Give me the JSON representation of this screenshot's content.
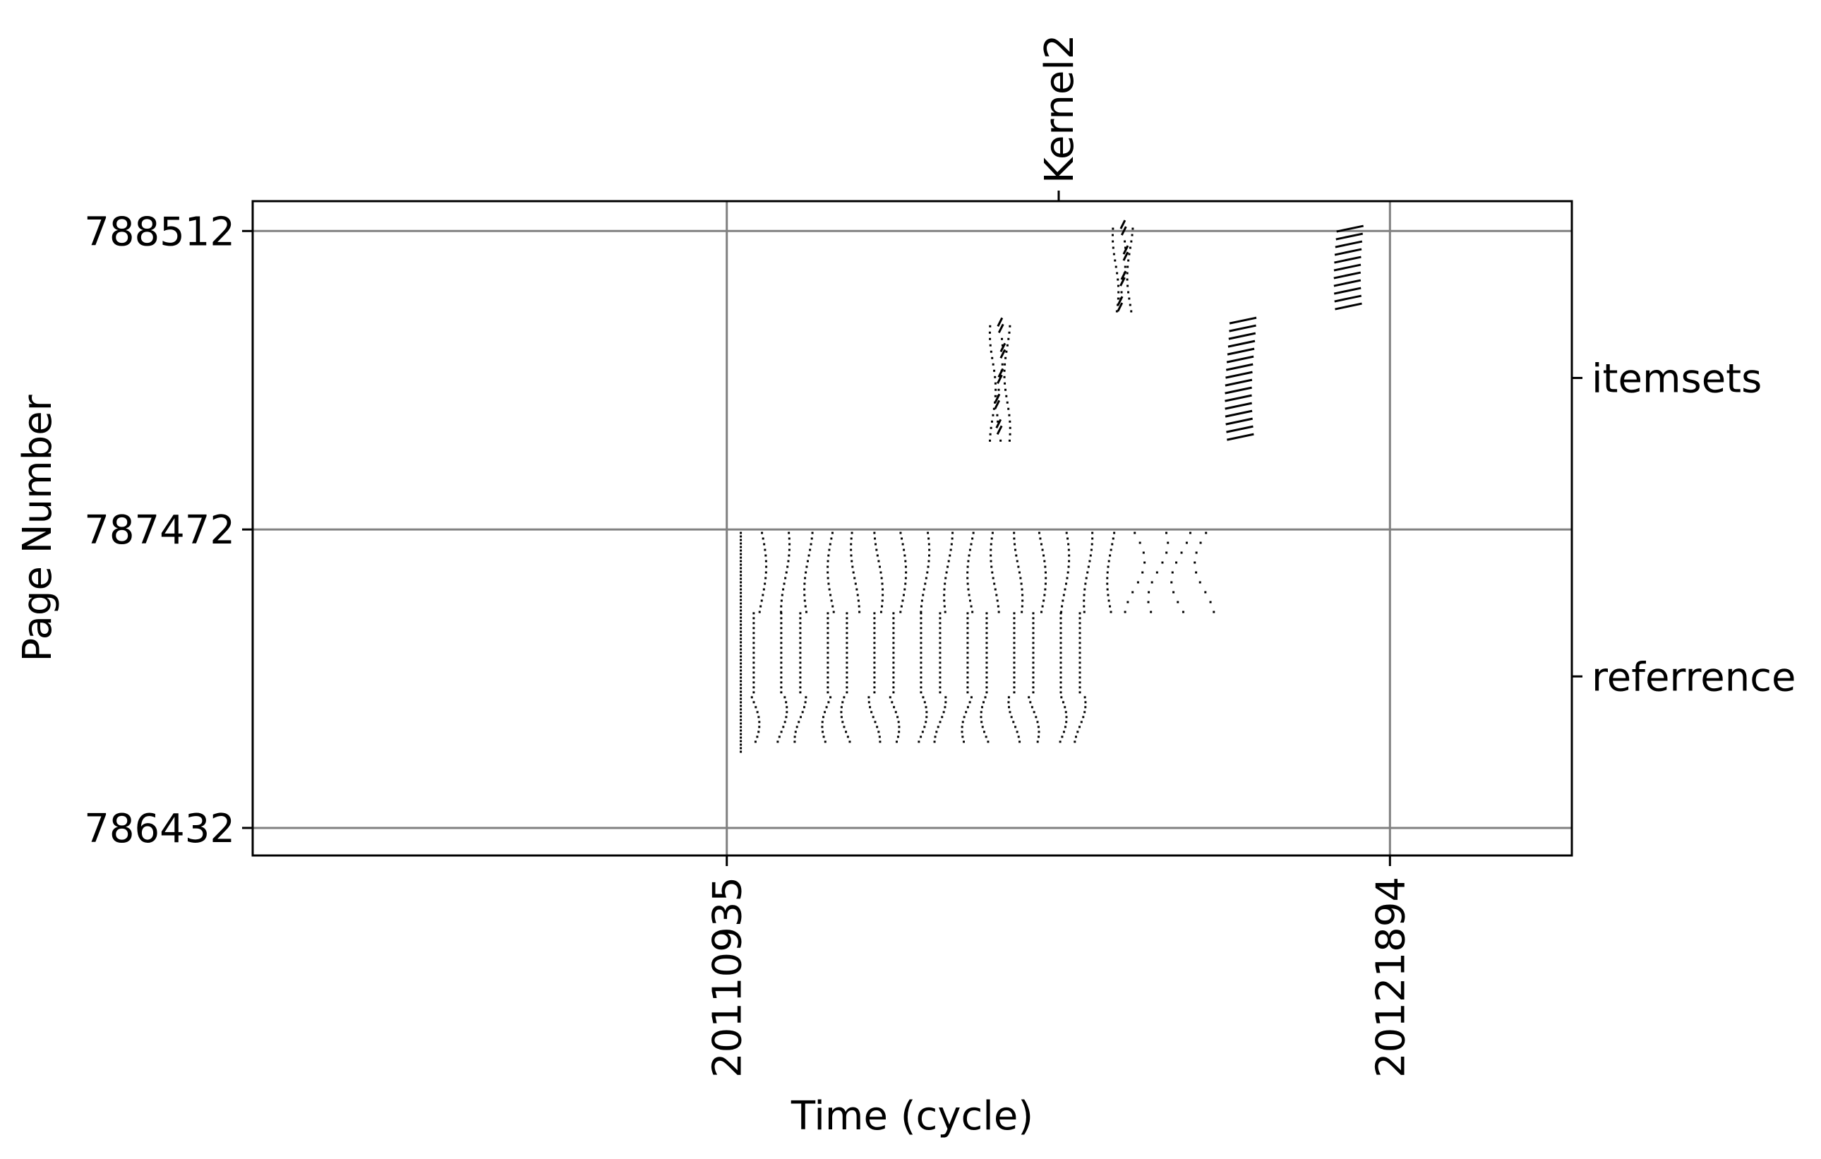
{
  "chart_data": {
    "type": "scatter",
    "title": "",
    "xlabel": "Time (cycle)",
    "ylabel": "Page Number",
    "xlim": [
      20103100,
      20124900
    ],
    "ylim": [
      786336,
      788616
    ],
    "x_ticks": [
      {
        "value": 20110935,
        "label": "20110935"
      },
      {
        "value": 20121894,
        "label": "20121894"
      }
    ],
    "y_ticks": [
      {
        "value": 786432,
        "label": "786432"
      },
      {
        "value": 787472,
        "label": "787472"
      },
      {
        "value": 788512,
        "label": "788512"
      }
    ],
    "right_ticks": [
      {
        "value": 788000,
        "label": "itemsets"
      },
      {
        "value": 786960,
        "label": "referrence"
      }
    ],
    "top_ticks": [
      {
        "value": 20116420,
        "label": "Kernel2"
      }
    ],
    "grid": true,
    "marker_color": "#000000",
    "grid_color": "#808080",
    "reference_columns": {
      "x_start": 20111050,
      "x_step": 385,
      "upper_count": 16,
      "upper_band": [
        787180,
        787460
      ],
      "lower_band": [
        786720,
        787180
      ],
      "shifted_start": 20111380
    },
    "itemset_clusters": [
      {
        "x": 20115450,
        "y_range": [
          787770,
          788180
        ],
        "zigzag": 120,
        "density": "dotted"
      },
      {
        "x": 20117480,
        "y_range": [
          788230,
          788520
        ],
        "zigzag": 120,
        "density": "dotted"
      },
      {
        "x": 20119440,
        "y_range": [
          787780,
          788200
        ],
        "zigzag": 160,
        "density": "dashed"
      },
      {
        "x": 20121240,
        "y_range": [
          788240,
          788520
        ],
        "zigzag": 160,
        "density": "dashed"
      }
    ]
  }
}
